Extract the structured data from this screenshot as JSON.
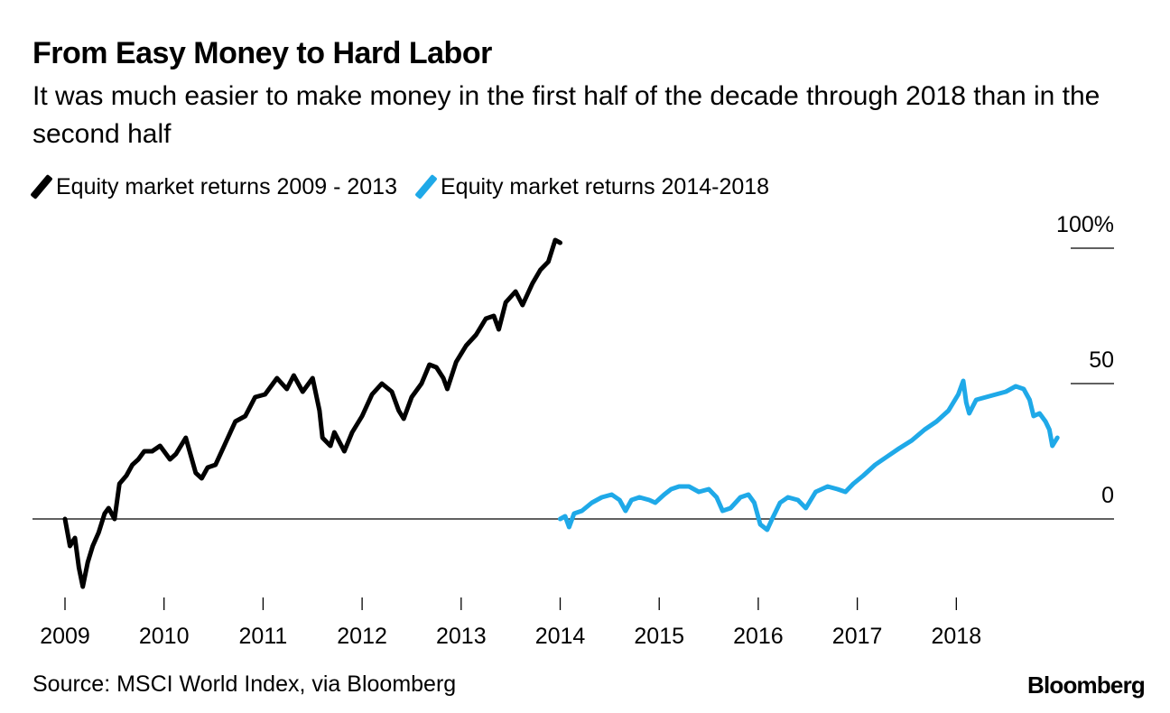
{
  "header": {
    "title": "From Easy Money to Hard Labor",
    "subtitle": "It was much easier to make money in the first half of the decade through 2018 than in the second half"
  },
  "footer": {
    "source": "Source: MSCI World Index, via Bloomberg",
    "brand": "Bloomberg"
  },
  "chart_data": {
    "type": "line",
    "title": "From Easy Money to Hard Labor",
    "subtitle": "It was much easier to make money in the first half of the decade through 2018 than in the second half",
    "xlabel": "",
    "ylabel": "",
    "x_range": [
      2009,
      2019.1
    ],
    "ylim": [
      -27,
      110
    ],
    "x_ticks": [
      2009,
      2010,
      2011,
      2012,
      2013,
      2014,
      2015,
      2016,
      2017,
      2018
    ],
    "x_tick_labels": [
      "2009",
      "2010",
      "2011",
      "2012",
      "2013",
      "2014",
      "2015",
      "2016",
      "2017",
      "2018"
    ],
    "y_ticks": [
      0,
      50,
      100
    ],
    "y_tick_labels": [
      "0",
      "50",
      "100%"
    ],
    "zero_line": true,
    "legend_position": "top-left",
    "series": [
      {
        "name": "Equity market returns 2009 - 2013",
        "color": "#000000",
        "points": [
          [
            2009.0,
            0
          ],
          [
            2009.05,
            -10
          ],
          [
            2009.1,
            -7
          ],
          [
            2009.14,
            -18
          ],
          [
            2009.18,
            -25
          ],
          [
            2009.23,
            -16
          ],
          [
            2009.28,
            -10
          ],
          [
            2009.34,
            -5
          ],
          [
            2009.4,
            2
          ],
          [
            2009.44,
            4
          ],
          [
            2009.5,
            0
          ],
          [
            2009.55,
            13
          ],
          [
            2009.62,
            16
          ],
          [
            2009.68,
            20
          ],
          [
            2009.74,
            22
          ],
          [
            2009.8,
            25
          ],
          [
            2009.88,
            25
          ],
          [
            2009.96,
            27
          ],
          [
            2010.06,
            22
          ],
          [
            2010.12,
            24
          ],
          [
            2010.22,
            30
          ],
          [
            2010.32,
            17
          ],
          [
            2010.38,
            15
          ],
          [
            2010.44,
            19
          ],
          [
            2010.52,
            20
          ],
          [
            2010.62,
            28
          ],
          [
            2010.72,
            36
          ],
          [
            2010.82,
            38
          ],
          [
            2010.92,
            45
          ],
          [
            2011.02,
            46
          ],
          [
            2011.14,
            52
          ],
          [
            2011.24,
            48
          ],
          [
            2011.31,
            53
          ],
          [
            2011.4,
            47
          ],
          [
            2011.5,
            52
          ],
          [
            2011.57,
            40
          ],
          [
            2011.6,
            30
          ],
          [
            2011.68,
            27
          ],
          [
            2011.72,
            32
          ],
          [
            2011.82,
            25
          ],
          [
            2011.9,
            32
          ],
          [
            2012.0,
            38
          ],
          [
            2012.1,
            46
          ],
          [
            2012.2,
            50
          ],
          [
            2012.3,
            47
          ],
          [
            2012.37,
            40
          ],
          [
            2012.42,
            37
          ],
          [
            2012.5,
            45
          ],
          [
            2012.6,
            50
          ],
          [
            2012.68,
            57
          ],
          [
            2012.75,
            56
          ],
          [
            2012.82,
            52
          ],
          [
            2012.86,
            48
          ],
          [
            2012.95,
            58
          ],
          [
            2013.05,
            64
          ],
          [
            2013.15,
            68
          ],
          [
            2013.25,
            74
          ],
          [
            2013.33,
            75
          ],
          [
            2013.38,
            70
          ],
          [
            2013.45,
            80
          ],
          [
            2013.55,
            84
          ],
          [
            2013.62,
            79
          ],
          [
            2013.72,
            87
          ],
          [
            2013.8,
            92
          ],
          [
            2013.88,
            95
          ],
          [
            2013.95,
            103
          ],
          [
            2014.0,
            102
          ]
        ]
      },
      {
        "name": "Equity market returns 2014-2018",
        "color": "#1FA9E8",
        "points": [
          [
            2014.0,
            0
          ],
          [
            2014.05,
            1
          ],
          [
            2014.09,
            -3
          ],
          [
            2014.14,
            2
          ],
          [
            2014.22,
            3
          ],
          [
            2014.32,
            6
          ],
          [
            2014.42,
            8
          ],
          [
            2014.52,
            9
          ],
          [
            2014.6,
            7
          ],
          [
            2014.66,
            3
          ],
          [
            2014.72,
            7
          ],
          [
            2014.8,
            8
          ],
          [
            2014.9,
            7
          ],
          [
            2014.96,
            6
          ],
          [
            2015.05,
            9
          ],
          [
            2015.12,
            11
          ],
          [
            2015.2,
            12
          ],
          [
            2015.3,
            12
          ],
          [
            2015.4,
            10
          ],
          [
            2015.5,
            11
          ],
          [
            2015.58,
            8
          ],
          [
            2015.64,
            3
          ],
          [
            2015.72,
            4
          ],
          [
            2015.82,
            8
          ],
          [
            2015.9,
            9
          ],
          [
            2015.96,
            6
          ],
          [
            2016.02,
            -2
          ],
          [
            2016.09,
            -4
          ],
          [
            2016.14,
            0
          ],
          [
            2016.22,
            6
          ],
          [
            2016.3,
            8
          ],
          [
            2016.4,
            7
          ],
          [
            2016.48,
            4
          ],
          [
            2016.58,
            10
          ],
          [
            2016.7,
            12
          ],
          [
            2016.8,
            11
          ],
          [
            2016.88,
            10
          ],
          [
            2016.96,
            13
          ],
          [
            2017.06,
            16
          ],
          [
            2017.18,
            20
          ],
          [
            2017.3,
            23
          ],
          [
            2017.42,
            26
          ],
          [
            2017.55,
            29
          ],
          [
            2017.68,
            33
          ],
          [
            2017.8,
            36
          ],
          [
            2017.92,
            40
          ],
          [
            2018.02,
            46
          ],
          [
            2018.07,
            51
          ],
          [
            2018.1,
            43
          ],
          [
            2018.13,
            39
          ],
          [
            2018.2,
            44
          ],
          [
            2018.3,
            45
          ],
          [
            2018.4,
            46
          ],
          [
            2018.5,
            47
          ],
          [
            2018.6,
            49
          ],
          [
            2018.68,
            48
          ],
          [
            2018.74,
            44
          ],
          [
            2018.78,
            38
          ],
          [
            2018.84,
            39
          ],
          [
            2018.9,
            36
          ],
          [
            2018.94,
            33
          ],
          [
            2018.97,
            27
          ],
          [
            2019.02,
            30
          ]
        ]
      }
    ]
  }
}
